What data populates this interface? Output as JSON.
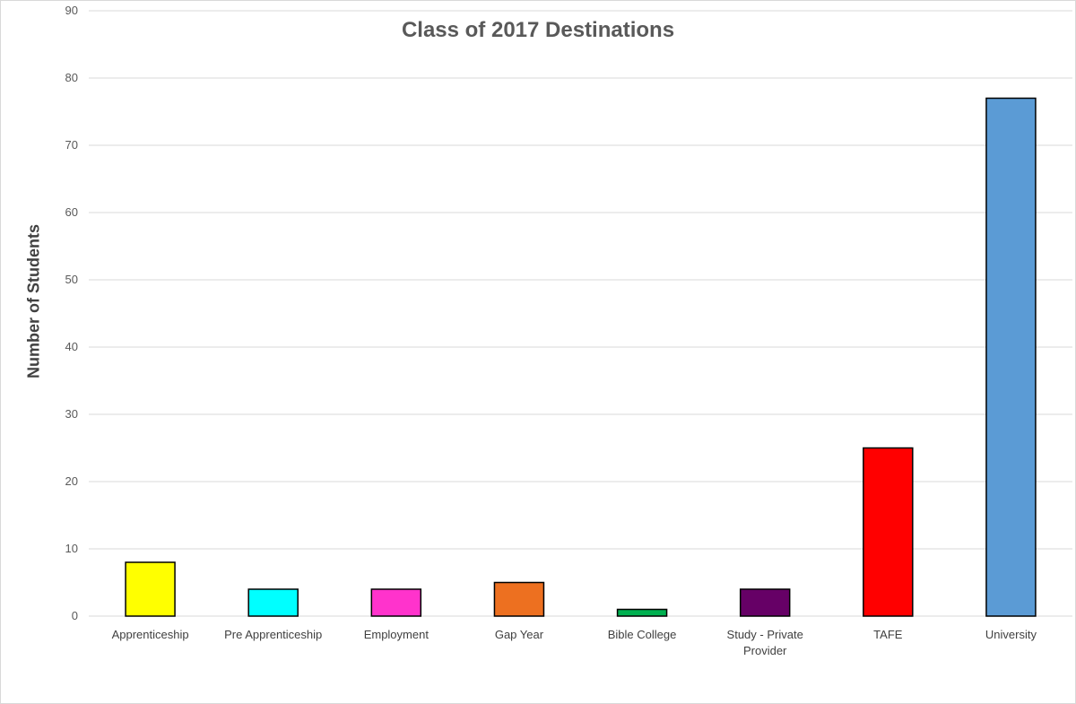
{
  "chart_data": {
    "type": "bar",
    "title": "Class of 2017 Destinations",
    "xlabel": "",
    "ylabel": "Number of Students",
    "ylim": [
      0,
      90
    ],
    "yticks": [
      0,
      10,
      20,
      30,
      40,
      50,
      60,
      70,
      80,
      90
    ],
    "grid": true,
    "legend": "none",
    "categories": [
      [
        "Apprenticeship"
      ],
      [
        "Pre Apprenticeship"
      ],
      [
        "Employment"
      ],
      [
        "Gap Year"
      ],
      [
        "Bible College"
      ],
      [
        "Study - Private",
        "Provider"
      ],
      [
        "TAFE"
      ],
      [
        "University"
      ]
    ],
    "values": [
      8,
      4,
      4,
      5,
      1,
      4,
      25,
      77
    ],
    "colors": [
      "#ffff00",
      "#00ffff",
      "#ff33cc",
      "#ed7020",
      "#00b050",
      "#660066",
      "#ff0000",
      "#5b9bd5"
    ]
  }
}
